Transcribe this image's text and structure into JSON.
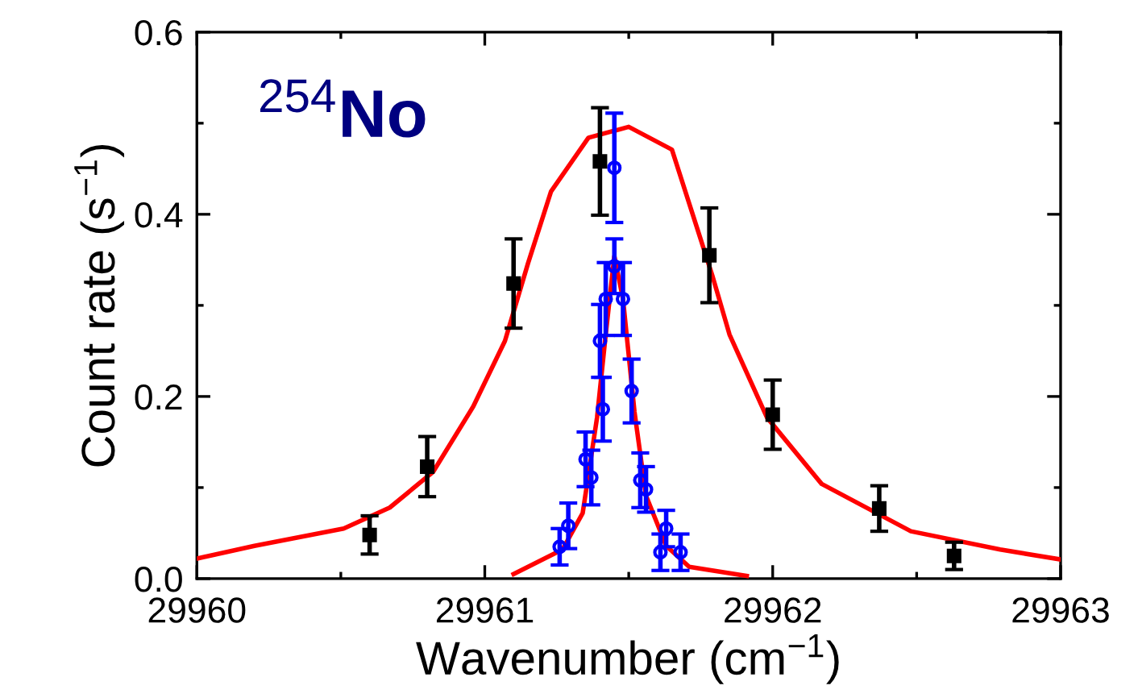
{
  "chart_data": {
    "type": "scatter",
    "xlabel": "Wavenumber (cm$^{−1}$)",
    "ylabel": "Count rate (s$^{−1}$)",
    "annotations": [
      "$^{254}$No"
    ],
    "xlim": [
      29960,
      29963
    ],
    "xticks": [
      29960,
      29961,
      29962,
      29963
    ],
    "ylim": [
      0,
      0.6
    ],
    "yticks": [
      {
        "value": 0,
        "label": "0.0"
      },
      {
        "value": 0.2,
        "label": "0.2"
      },
      {
        "value": 0.4,
        "label": "0.4"
      },
      {
        "value": 0.6,
        "label": "0.6"
      }
    ],
    "grid": false,
    "series": [
      {
        "type": "line",
        "color": "#ff0000",
        "marker": "none",
        "line_style": "solid",
        "x": [
          29960.0,
          29960.2,
          29960.51,
          29960.67,
          29960.82,
          29960.96,
          29961.07,
          29961.15,
          29961.23,
          29961.36,
          29961.5,
          29961.65,
          29961.79,
          29961.85,
          29961.98,
          29962.17,
          29962.48,
          29962.79,
          29963.0
        ],
        "values": [
          0.022,
          0.036,
          0.055,
          0.078,
          0.117,
          0.189,
          0.261,
          0.346,
          0.425,
          0.484,
          0.496,
          0.471,
          0.333,
          0.268,
          0.177,
          0.104,
          0.052,
          0.032,
          0.021
        ]
      },
      {
        "type": "line",
        "color": "#ff0000",
        "marker": "none",
        "line_style": "solid",
        "x": [
          29961.1,
          29961.27,
          29961.34,
          29961.39,
          29961.42,
          29961.45,
          29961.48,
          29961.52,
          29961.56,
          29961.63,
          29961.71,
          29961.91
        ],
        "values": [
          0.005,
          0.032,
          0.072,
          0.177,
          0.268,
          0.354,
          0.307,
          0.183,
          0.091,
          0.036,
          0.013,
          0.003
        ]
      },
      {
        "color": "#0000ff",
        "marker": "circle",
        "x": [
          29961.26,
          29961.29,
          29961.35,
          29961.37,
          29961.41,
          29961.4,
          29961.42,
          29961.45,
          29961.45,
          29961.48,
          29961.51,
          29961.54,
          29961.56,
          29961.61,
          29961.63,
          29961.68
        ],
        "values": [
          0.035,
          0.058,
          0.131,
          0.111,
          0.186,
          0.261,
          0.307,
          0.451,
          0.343,
          0.307,
          0.206,
          0.108,
          0.098,
          0.029,
          0.055,
          0.029
        ],
        "errors": [
          0.02,
          0.025,
          0.03,
          0.03,
          0.035,
          0.04,
          0.04,
          0.06,
          0.03,
          0.04,
          0.035,
          0.03,
          0.025,
          0.02,
          0.02,
          0.02
        ]
      },
      {
        "color": "#000000",
        "marker": "square",
        "x": [
          29960.6,
          29960.8,
          29961.1,
          29961.4,
          29961.78,
          29962.0,
          29962.37,
          29962.63
        ],
        "values": [
          0.048,
          0.123,
          0.324,
          0.458,
          0.355,
          0.18,
          0.077,
          0.025
        ],
        "errors": [
          0.021,
          0.033,
          0.049,
          0.059,
          0.052,
          0.038,
          0.025,
          0.015
        ]
      }
    ]
  }
}
